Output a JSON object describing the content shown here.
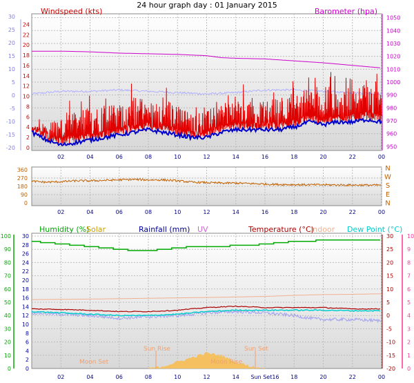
{
  "title": "24 hour graph day : 01 January 2015",
  "colors": {
    "wind": "#e00000",
    "gust_env": "#0000cc",
    "baro": "#cc00cc",
    "temp_bg": "#b0b0ff",
    "dir": "#c06000",
    "humidity": "#00aa00",
    "solar": "#c8a000",
    "rainfall": "#000099",
    "uv": "#cc66cc",
    "temperature": "#aa0000",
    "indoor": "#f0b090",
    "dewpoint": "#00cccc",
    "rose_axis": "#ff3399",
    "bottom_left_axis": "#00aa00",
    "grid": "#bbbbbb"
  },
  "panel1": {
    "left_label": "Windspeed (kts)",
    "right_label": "Barometer (hpa)"
  },
  "panel3": {
    "labels": {
      "humidity": "Humidity (%)",
      "solar": "Solar",
      "rainfall": "Rainfall (mm)",
      "uv": "UV",
      "temperature": "Temperature (°C)",
      "indoor": "Indoor",
      "dewpoint": "Dew Point (°C)"
    },
    "annotations": {
      "moon_set": "Moon Set",
      "sun_rise": "Sun Rise",
      "sun_set": "Sun Set",
      "moon_rise": "Moon Rise",
      "sun_axis": "Sun Set16"
    }
  },
  "chart_data": [
    {
      "type": "line",
      "name": "wind-barometer",
      "title": "24 hour graph day : 01 January 2015",
      "x_ticks": [
        "02",
        "04",
        "06",
        "08",
        "10",
        "12",
        "14",
        "16",
        "18",
        "20",
        "22",
        "00"
      ],
      "ylabel": "Windspeed (kts)",
      "y_ticks": [
        0,
        2,
        4,
        6,
        8,
        10,
        12,
        14,
        16,
        18,
        20,
        22,
        24
      ],
      "ylim": [
        0,
        25
      ],
      "y2label": "Barometer (hpa)",
      "y2_ticks": [
        950,
        960,
        970,
        980,
        990,
        1000,
        1010,
        1020,
        1030,
        1040,
        1050
      ],
      "y2lim": [
        947,
        1053
      ],
      "y3_ticks": [
        -20,
        -15,
        -10,
        -5,
        0,
        5,
        10,
        15,
        20,
        25,
        30
      ],
      "y3lim": [
        -21,
        31
      ],
      "series": [
        {
          "name": "Barometer (hpa)",
          "axis": "y2",
          "x": [
            0.0,
            2.0,
            4.0,
            6.0,
            8.0,
            10.0,
            11.0,
            12.0,
            13.0,
            14.0,
            16.0,
            18.0,
            20.0,
            22.0,
            23.0,
            24.0
          ],
          "values": [
            1024,
            1024,
            1023.5,
            1022.5,
            1022,
            1021.5,
            1021,
            1020.5,
            1019,
            1018.5,
            1018,
            1016.5,
            1015,
            1013,
            1012,
            1011
          ]
        },
        {
          "name": "Temperature backdrop",
          "axis": "y3",
          "x": [
            0.0,
            2.0,
            4.0,
            6.0,
            8.0,
            10.0,
            12.0,
            14.0,
            16.0,
            18.0,
            20.0,
            22.0,
            24.0
          ],
          "values": [
            0.5,
            1.5,
            1.5,
            2.0,
            1.5,
            1.0,
            0.5,
            1.0,
            2.0,
            2.0,
            1.5,
            1.0,
            0.5
          ]
        },
        {
          "name": "Wind average",
          "axis": "y",
          "x": [
            0.0,
            1.0,
            2.0,
            3.0,
            4.0,
            5.0,
            6.0,
            7.0,
            8.0,
            9.0,
            10.0,
            11.0,
            12.0,
            13.0,
            14.0,
            15.0,
            16.0,
            17.0,
            18.0,
            19.0,
            20.0,
            21.0,
            22.0,
            23.0,
            24.0
          ],
          "values": [
            3,
            1.5,
            0.5,
            1,
            1.5,
            2,
            2.5,
            3,
            3.5,
            3,
            2.5,
            2,
            2,
            3,
            3.5,
            3.5,
            3.5,
            3.5,
            4,
            5,
            4.5,
            5,
            5,
            5.5,
            5
          ]
        },
        {
          "name": "Wind gust",
          "axis": "y",
          "x": [
            0.0,
            1.0,
            2.0,
            3.0,
            4.0,
            5.0,
            6.0,
            7.0,
            8.0,
            9.0,
            10.0,
            11.0,
            12.0,
            13.0,
            14.0,
            15.0,
            16.0,
            17.0,
            18.0,
            19.0,
            20.0,
            21.0,
            22.0,
            23.0,
            24.0
          ],
          "values": [
            4,
            5,
            6,
            7,
            8,
            9,
            8,
            10,
            9,
            10,
            8,
            7,
            7,
            9,
            10,
            9,
            9,
            10,
            11,
            12,
            12,
            11,
            12,
            12,
            11
          ]
        }
      ]
    },
    {
      "type": "line",
      "name": "wind-direction",
      "x_ticks": [
        "02",
        "04",
        "06",
        "08",
        "10",
        "12",
        "14",
        "16",
        "18",
        "20",
        "22",
        "00"
      ],
      "y_ticks": [
        0,
        90,
        180,
        270,
        360
      ],
      "ylim": [
        0,
        360
      ],
      "y2_ticks": [
        "N",
        "W",
        "S",
        "E",
        "N"
      ],
      "series": [
        {
          "name": "Wind direction",
          "x": [
            0.0,
            1.0,
            2.0,
            3.0,
            4.0,
            5.0,
            6.0,
            7.0,
            8.0,
            9.0,
            10.0,
            11.0,
            12.0,
            13.0,
            14.0,
            15.0,
            16.0,
            17.0,
            18.0,
            19.0,
            20.0,
            21.0,
            22.0,
            23.0,
            24.0
          ],
          "values": [
            235,
            225,
            230,
            240,
            240,
            245,
            250,
            255,
            250,
            250,
            240,
            225,
            220,
            215,
            215,
            210,
            205,
            200,
            198,
            197,
            196,
            195,
            194,
            193,
            193
          ]
        }
      ]
    },
    {
      "type": "line",
      "name": "humidity-temperature",
      "x_ticks": [
        "02",
        "04",
        "06",
        "08",
        "10",
        "12",
        "14",
        "",
        "18",
        "20",
        "22",
        "00"
      ],
      "y_ticks_humidity": [
        0,
        10,
        20,
        30,
        40,
        50,
        60,
        70,
        80,
        90,
        100
      ],
      "ylim_humidity": [
        0,
        100
      ],
      "y_ticks_rain": [
        0,
        2,
        4,
        6,
        8,
        10,
        12,
        14,
        16,
        18,
        20,
        22,
        24,
        26,
        28,
        30
      ],
      "ylim_rain": [
        0,
        30
      ],
      "y_ticks_temp": [
        -20,
        -15,
        -10,
        -5,
        0,
        5,
        10,
        15,
        20,
        25,
        30
      ],
      "ylim_temp": [
        -20,
        30
      ],
      "y_ticks_uv": [
        0,
        1,
        2,
        3,
        4,
        5,
        6,
        7,
        8,
        9,
        10
      ],
      "ylim_uv": [
        0,
        10
      ],
      "series": [
        {
          "name": "Humidity (%)",
          "x": [
            0.0,
            1.0,
            2.0,
            3.0,
            4.0,
            5.0,
            6.0,
            7.0,
            8.0,
            9.0,
            10.0,
            11.0,
            12.0,
            13.0,
            14.0,
            15.0,
            16.0,
            17.0,
            18.0,
            19.0,
            20.0,
            21.0,
            22.0,
            23.0,
            24.0
          ],
          "values": [
            96,
            95,
            94,
            93,
            92,
            91,
            90,
            89,
            89,
            90,
            91,
            92,
            92,
            92,
            93,
            93,
            94,
            95,
            96,
            96,
            97,
            97,
            97,
            97,
            97
          ]
        },
        {
          "name": "Indoor",
          "x": [
            0.0,
            4.0,
            8.0,
            12.0,
            16.0,
            18.0,
            20.0,
            22.0,
            24.0
          ],
          "values": [
            6.0,
            6.2,
            6.5,
            6.8,
            7.2,
            7.6,
            7.9,
            8.0,
            8.2
          ]
        },
        {
          "name": "Temperature (°C)",
          "x": [
            0.0,
            2.0,
            4.0,
            6.0,
            8.0,
            10.0,
            12.0,
            14.0,
            16.0,
            18.0,
            20.0,
            22.0,
            24.0
          ],
          "values": [
            2.5,
            2.3,
            2.0,
            1.5,
            1.5,
            2.0,
            3.0,
            3.5,
            3.0,
            3.0,
            3.0,
            2.5,
            2.5
          ]
        },
        {
          "name": "Dew Point (°C)",
          "x": [
            0.0,
            2.0,
            4.0,
            6.0,
            8.0,
            10.0,
            12.0,
            14.0,
            16.0,
            18.0,
            20.0,
            22.0,
            24.0
          ],
          "values": [
            1.5,
            1.0,
            0.5,
            0.0,
            0.0,
            0.5,
            1.5,
            2.0,
            2.0,
            2.0,
            2.0,
            1.8,
            1.8
          ]
        },
        {
          "name": "Windchill",
          "x": [
            0.0,
            2.0,
            4.0,
            6.0,
            8.0,
            10.0,
            12.0,
            14.0,
            16.0,
            18.0,
            19.0,
            20.0,
            22.0,
            24.0
          ],
          "values": [
            1.0,
            0.5,
            0.0,
            -1.0,
            -0.5,
            0.0,
            1.0,
            1.5,
            1.0,
            0.0,
            -1.0,
            -1.5,
            -1.5,
            -2.0
          ]
        },
        {
          "name": "Solar",
          "x": [
            8.0,
            9.0,
            10.0,
            11.0,
            12.0,
            13.0,
            14.0,
            15.0,
            16.0
          ],
          "values": [
            0,
            0.5,
            1.5,
            2.5,
            3.5,
            3,
            1.5,
            0.5,
            0
          ]
        }
      ]
    }
  ]
}
